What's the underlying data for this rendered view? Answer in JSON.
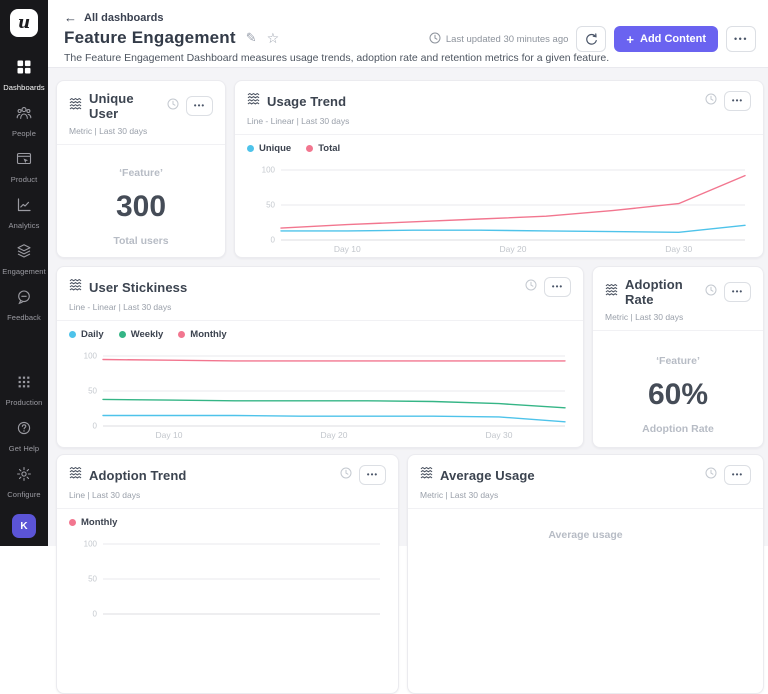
{
  "sidebar": {
    "logo_letter": "u",
    "items": [
      {
        "label": "Dashboards",
        "active": true
      },
      {
        "label": "People",
        "active": false
      },
      {
        "label": "Product",
        "active": false
      },
      {
        "label": "Analytics",
        "active": false
      },
      {
        "label": "Engagement",
        "active": false
      },
      {
        "label": "Feedback",
        "active": false
      }
    ],
    "bottom_items": [
      {
        "label": "Production"
      },
      {
        "label": "Get Help"
      },
      {
        "label": "Configure"
      }
    ],
    "avatar_initial": "K"
  },
  "header": {
    "back_label": "All dashboards",
    "title": "Feature Engagement",
    "description": "The Feature Engagement Dashboard measures usage trends, adoption rate and retention metrics for a given feature.",
    "last_updated": "Last updated 30 minutes ago",
    "add_content_label": "Add Content"
  },
  "ui": {
    "more_glyph": "•••",
    "pencil_glyph": "✎",
    "star_glyph": "☆",
    "back_arrow_glyph": "←",
    "plus_glyph": "+"
  },
  "colors": {
    "accent": "#6a63f0",
    "sidebar_bg": "#18181b",
    "page_bg": "#f4f4f7",
    "series_blue": "#4ec3ea",
    "series_pink": "#f2768f",
    "series_green": "#35b586"
  },
  "cards": {
    "unique_user": {
      "title": "Unique User",
      "subtitle": "Metric | Last 30 days",
      "metric": {
        "label": "‘Feature’",
        "value": "300",
        "sublabel": "Total users"
      }
    },
    "usage_trend": {
      "title": "Usage Trend",
      "subtitle": "Line - Linear | Last 30 days"
    },
    "user_stickiness": {
      "title": "User Stickiness",
      "subtitle": "Line - Linear | Last 30 days"
    },
    "adoption_rate": {
      "title": "Adoption Rate",
      "subtitle": "Metric | Last 30 days",
      "metric": {
        "label": "‘Feature’",
        "value": "60%",
        "sublabel": "Adoption Rate"
      }
    },
    "adoption_trend": {
      "title": "Adoption Trend",
      "subtitle": "Line | Last 30 days"
    },
    "average_usage": {
      "title": "Average Usage",
      "subtitle": "Metric | Last 30 days",
      "metric": {
        "label": "Average usage"
      }
    }
  },
  "chart_data": [
    {
      "id": "usage_trend",
      "type": "line",
      "title": "Usage Trend",
      "x_range": [
        6,
        34
      ],
      "x_days": [
        6,
        10,
        14,
        18,
        22,
        26,
        30,
        34
      ],
      "x_ticks": [
        {
          "label": "Day 10",
          "day": 10
        },
        {
          "label": "Day 20",
          "day": 20
        },
        {
          "label": "Day 30",
          "day": 30
        }
      ],
      "ylim": [
        0,
        100
      ],
      "y_ticks": [
        0,
        50,
        100
      ],
      "grid": true,
      "legend_position": "top-left",
      "series": [
        {
          "name": "Unique",
          "color": "#4ec3ea",
          "values": [
            13,
            13,
            14,
            14,
            13,
            12,
            11,
            21
          ]
        },
        {
          "name": "Total",
          "color": "#f2768f",
          "values": [
            17,
            22,
            26,
            30,
            34,
            42,
            52,
            92
          ]
        }
      ]
    },
    {
      "id": "user_stickiness",
      "type": "line",
      "title": "User Stickiness",
      "x_range": [
        6,
        34
      ],
      "x_days": [
        6,
        10,
        14,
        18,
        22,
        26,
        30,
        34
      ],
      "x_ticks": [
        {
          "label": "Day 10",
          "day": 10
        },
        {
          "label": "Day 20",
          "day": 20
        },
        {
          "label": "Day 30",
          "day": 30
        }
      ],
      "ylim": [
        0,
        100
      ],
      "y_ticks": [
        0,
        50,
        100
      ],
      "grid": true,
      "legend_position": "top-left",
      "series": [
        {
          "name": "Daily",
          "color": "#4ec3ea",
          "values": [
            15,
            15,
            15,
            14,
            14,
            14,
            13,
            6
          ]
        },
        {
          "name": "Weekly",
          "color": "#35b586",
          "values": [
            38,
            37,
            36,
            36,
            36,
            35,
            32,
            26
          ]
        },
        {
          "name": "Monthly",
          "color": "#f2768f",
          "values": [
            95,
            94,
            93,
            93,
            93,
            93,
            93,
            93
          ]
        }
      ]
    },
    {
      "id": "adoption_trend",
      "type": "line",
      "title": "Adoption Trend",
      "x_range": [
        6,
        34
      ],
      "x_days": [],
      "x_ticks": [],
      "ylim": [
        0,
        100
      ],
      "y_ticks": [
        0,
        50,
        100
      ],
      "grid": true,
      "legend_position": "top-left",
      "series": [
        {
          "name": "Monthly",
          "color": "#f2768f",
          "values": []
        }
      ]
    }
  ]
}
